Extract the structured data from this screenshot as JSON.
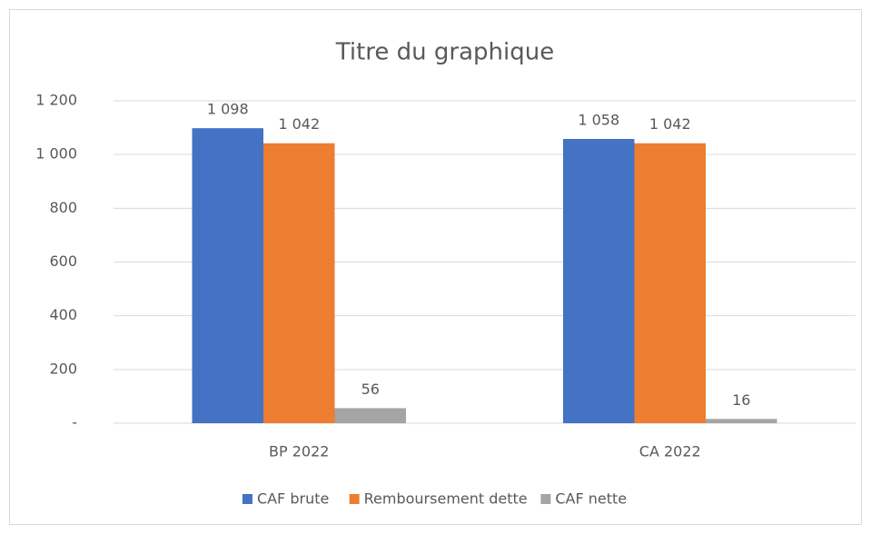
{
  "chart_data": {
    "type": "bar",
    "title": "Titre du graphique",
    "categories": [
      "BP 2022",
      "CA 2022"
    ],
    "series": [
      {
        "name": "CAF brute",
        "color": "#4472c4",
        "values": [
          1098,
          1058
        ],
        "value_labels": [
          "1 098",
          "1 058"
        ]
      },
      {
        "name": "Remboursement dette",
        "color": "#ed7d31",
        "values": [
          1042,
          1042
        ],
        "value_labels": [
          "1 042",
          "1 042"
        ]
      },
      {
        "name": "CAF nette",
        "color": "#a5a5a5",
        "values": [
          56,
          16
        ]
      }
    ],
    "ylim": [
      0,
      1200
    ],
    "yticks": [
      {
        "value": 0,
        "label": "-"
      },
      200,
      400,
      600,
      800,
      {
        "value": 1000,
        "label": "1 000"
      },
      {
        "value": 1200,
        "label": "1 200"
      }
    ],
    "grid": true,
    "legend": "bottom"
  }
}
